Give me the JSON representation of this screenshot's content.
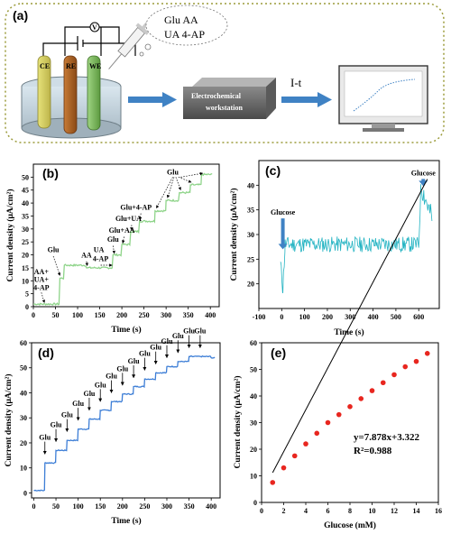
{
  "colors": {
    "panel_b_trace": "#8fd48a",
    "panel_c_trace": "#22b3c2",
    "panel_d_trace": "#3d7ed6",
    "panel_e_points": "#e8261f",
    "panel_e_fit": "#000000",
    "arrow_blue": "#3f82c4",
    "frame_a": "#9b9b3a"
  },
  "panel_a": {
    "label": "(a)",
    "bubble_lines": [
      "Glu  AA",
      "UA  4-AP"
    ],
    "electrodes": [
      "CE",
      "RE",
      "WE"
    ],
    "meter_symbol": "V",
    "workstation_label": [
      "Electrochemical",
      "workstation"
    ],
    "technique": "I-t",
    "icons": [
      "electrochemical-cell-icon",
      "syringe-icon",
      "workstation-box-icon",
      "computer-monitor-icon"
    ]
  },
  "chart_data": [
    {
      "id": "b",
      "label": "(b)",
      "type": "line",
      "xlabel": "Time (s)",
      "ylabel": "Current density (μA/cm²)",
      "xlim": [
        0,
        420
      ],
      "ylim": [
        0,
        55
      ],
      "xticks": [
        0,
        50,
        100,
        150,
        200,
        250,
        300,
        350,
        400
      ],
      "yticks": [
        0,
        5,
        10,
        15,
        20,
        25,
        30,
        35,
        40,
        45,
        50
      ],
      "steps": [
        [
          0,
          1
        ],
        [
          60,
          11
        ],
        [
          70,
          16
        ],
        [
          120,
          15
        ],
        [
          180,
          20
        ],
        [
          200,
          24
        ],
        [
          220,
          29
        ],
        [
          240,
          33
        ],
        [
          275,
          37
        ],
        [
          300,
          41
        ],
        [
          330,
          44
        ],
        [
          355,
          47
        ],
        [
          380,
          51
        ]
      ],
      "annotations": [
        {
          "text": "AA+",
          "x": 18,
          "y": 12.5
        },
        {
          "text": "UA+",
          "x": 18,
          "y": 9.5
        },
        {
          "text": "4-AP",
          "x": 18,
          "y": 6.5
        },
        {
          "text": "Glu",
          "x": 45,
          "y": 21
        },
        {
          "text": "AA",
          "x": 120,
          "y": 19
        },
        {
          "text": "UA",
          "x": 148,
          "y": 21
        },
        {
          "text": "4-AP",
          "x": 152,
          "y": 17.5
        },
        {
          "text": "Glu",
          "x": 180,
          "y": 25
        },
        {
          "text": "Glu+AA",
          "x": 200,
          "y": 28.5
        },
        {
          "text": "Glu+UA",
          "x": 215,
          "y": 33
        },
        {
          "text": "Glu+4-AP",
          "x": 232,
          "y": 37.5
        },
        {
          "text": "Glu",
          "x": 315,
          "y": 51
        }
      ]
    },
    {
      "id": "c",
      "label": "(c)",
      "type": "line",
      "xlabel": "Time (s)",
      "ylabel": "Current density (μA/cm²)",
      "xlim": [
        -100,
        690
      ],
      "ylim": [
        15,
        45
      ],
      "xticks": [
        -100,
        0,
        100,
        200,
        300,
        400,
        500,
        600
      ],
      "yticks": [
        20,
        25,
        30,
        35,
        40
      ],
      "baseline": [
        [
          -5,
          24
        ],
        [
          5,
          19
        ],
        [
          15,
          28
        ],
        [
          600,
          28
        ],
        [
          610,
          40
        ],
        [
          660,
          33
        ]
      ],
      "noise_amplitude": 1.6,
      "annotations": [
        {
          "text": "Glucose",
          "x": 5,
          "y": 34
        },
        {
          "text": "Glucose",
          "x": 620,
          "y": 42
        }
      ]
    },
    {
      "id": "d",
      "label": "(d)",
      "type": "line",
      "xlabel": "Time (s)",
      "ylabel": "Current density (μA/cm²)",
      "xlim": [
        -5,
        420
      ],
      "ylim": [
        -2,
        60
      ],
      "xticks": [
        0,
        50,
        100,
        150,
        200,
        250,
        300,
        350,
        400
      ],
      "yticks": [
        0,
        10,
        20,
        30,
        40,
        50,
        60
      ],
      "steps": [
        [
          0,
          1
        ],
        [
          25,
          12
        ],
        [
          50,
          17
        ],
        [
          75,
          21
        ],
        [
          100,
          25.5
        ],
        [
          125,
          29.5
        ],
        [
          150,
          33
        ],
        [
          175,
          36.5
        ],
        [
          200,
          39.5
        ],
        [
          225,
          42.5
        ],
        [
          250,
          45.5
        ],
        [
          275,
          48
        ],
        [
          300,
          50.5
        ],
        [
          325,
          52.5
        ],
        [
          350,
          54.5
        ],
        [
          400,
          54
        ]
      ],
      "arrow_label": "Glu",
      "arrow_times": [
        25,
        50,
        75,
        100,
        125,
        150,
        175,
        200,
        225,
        250,
        275,
        300,
        325,
        350,
        375
      ]
    },
    {
      "id": "e",
      "label": "(e)",
      "type": "scatter",
      "xlabel": "Glucose (mM)",
      "ylabel": "Current density (μA/cm²)",
      "xlim": [
        0,
        16
      ],
      "ylim": [
        0,
        60
      ],
      "xticks": [
        0,
        2,
        4,
        6,
        8,
        10,
        12,
        14,
        16
      ],
      "yticks": [
        0,
        10,
        20,
        30,
        40,
        50,
        60
      ],
      "x": [
        1,
        2,
        3,
        4,
        5,
        6,
        7,
        8,
        9,
        10,
        11,
        12,
        13,
        14,
        15
      ],
      "y": [
        7.5,
        13,
        17.5,
        22,
        26,
        30,
        33,
        36,
        39,
        42,
        45,
        48,
        51,
        53,
        56
      ],
      "fit": {
        "slope": 7.878,
        "intercept": 3.322,
        "x_range": [
          1,
          15
        ]
      },
      "equation": "y=7.878x+3.322",
      "r_squared": "R²=0.988"
    }
  ]
}
